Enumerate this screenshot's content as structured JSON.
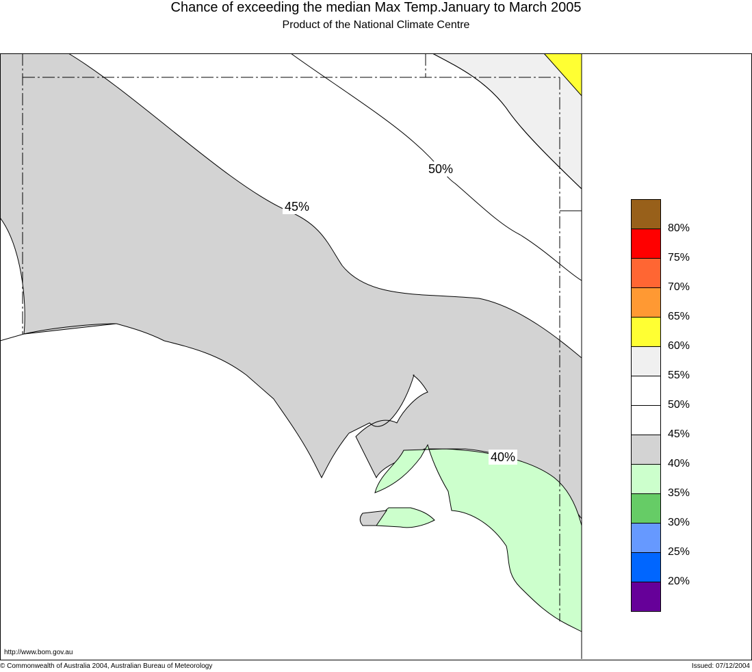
{
  "title": "Chance of exceeding the median Max Temp.January to March 2005",
  "subtitle": "Product of the National Climate Centre",
  "contour_labels": [
    "45%",
    "50%",
    "40%"
  ],
  "legend": {
    "labels": [
      "80%",
      "75%",
      "70%",
      "65%",
      "60%",
      "55%",
      "50%",
      "45%",
      "40%",
      "35%",
      "30%",
      "25%",
      "20%"
    ],
    "colors": [
      "#98601a",
      "#ff0000",
      "#ff6633",
      "#ff9933",
      "#ffff33",
      "#f0f0f0",
      "#ffffff",
      "#ffffff",
      "#d3d3d3",
      "#ccffcc",
      "#66cc66",
      "#6699ff",
      "#0066ff",
      "#660099"
    ]
  },
  "footer": {
    "url": "http://www.bom.gov.au",
    "copyright": "© Commonwealth of Australia 2004, Australian Bureau of Meteorology",
    "issued": "Issued: 07/12/2004"
  }
}
